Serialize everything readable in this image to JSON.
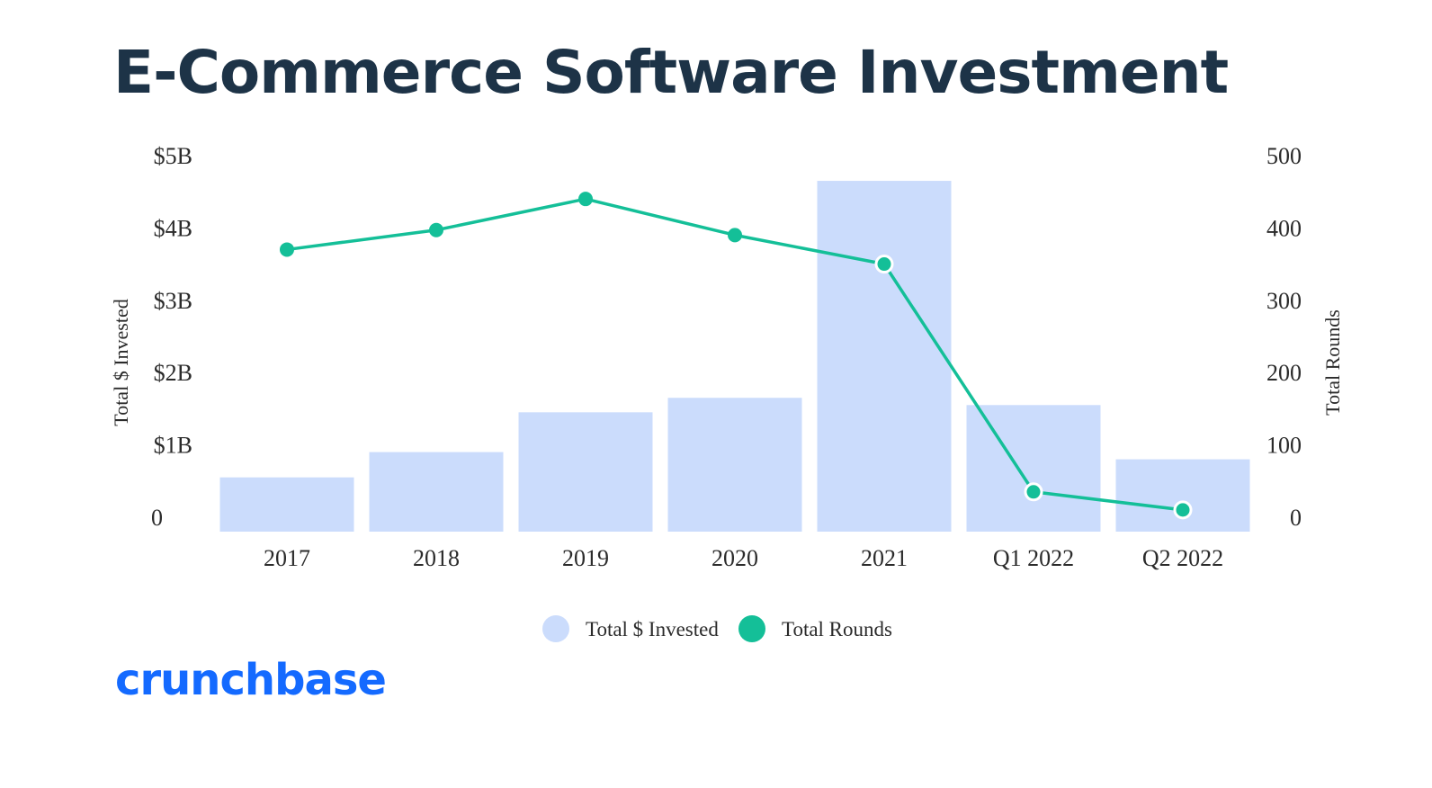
{
  "title": "E-Commerce Software Investment",
  "logo_text": "crunchbase",
  "colors": {
    "bar": "#cbdcfc",
    "line": "#14bf98",
    "title": "#1d3347",
    "logo": "#146aff"
  },
  "chart_data": {
    "type": "bar",
    "title": "E-Commerce Software Investment",
    "categories": [
      "2017",
      "2018",
      "2019",
      "2020",
      "2021",
      "Q1 2022",
      "Q2 2022"
    ],
    "series": [
      {
        "name": "Total $ Invested",
        "type": "bar",
        "axis": "left",
        "unit": "B",
        "values": [
          0.75,
          1.1,
          1.65,
          1.85,
          4.85,
          1.75,
          1.0
        ]
      },
      {
        "name": "Total Rounds",
        "type": "line",
        "axis": "right",
        "values": [
          390,
          417,
          460,
          410,
          370,
          55,
          30
        ]
      }
    ],
    "ylabel": "Total $ Invested",
    "ylabel_right": "Total Rounds",
    "ylim": [
      0,
      5
    ],
    "ylim_right": [
      0,
      500
    ],
    "yticks": [
      "0",
      "$1B",
      "$2B",
      "$3B",
      "$4B",
      "$5B"
    ],
    "yticks_right": [
      "0",
      "100",
      "200",
      "300",
      "400",
      "500"
    ],
    "legend": [
      {
        "label": "Total $ Invested"
      },
      {
        "label": "Total Rounds"
      }
    ],
    "legend_position": "bottom",
    "grid": false
  }
}
